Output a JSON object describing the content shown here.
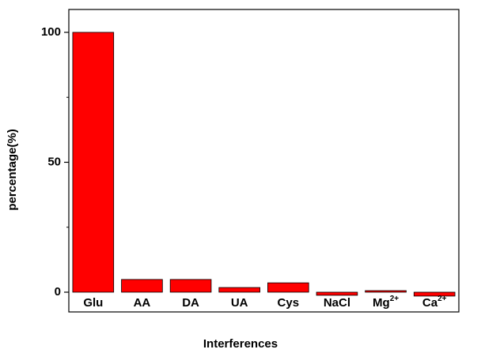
{
  "chart_data": {
    "type": "bar",
    "xlabel": "Interferences",
    "ylabel": "percentage(%)",
    "categories": [
      "Glu",
      "AA",
      "DA",
      "UA",
      "Cys",
      "NaCl",
      "Mg2+",
      "Ca2+"
    ],
    "values": [
      100,
      4.9,
      4.9,
      1.8,
      3.6,
      -1.2,
      0.6,
      -1.5
    ],
    "color": "#ff0000",
    "ylim": [
      -7.6,
      108.8
    ],
    "yticks": [
      0,
      50,
      100
    ],
    "minor_yticks": [
      25,
      75
    ],
    "grid": false
  }
}
